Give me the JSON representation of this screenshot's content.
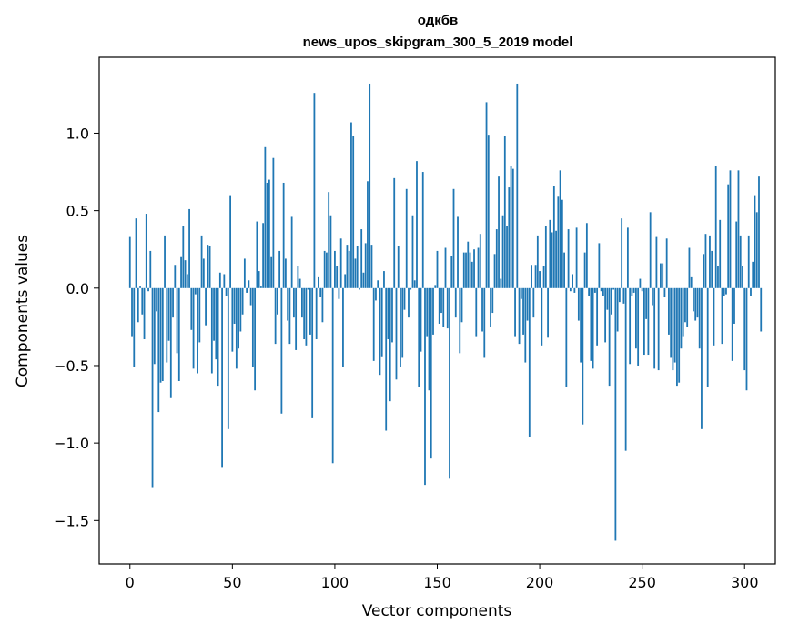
{
  "chart_data": {
    "type": "bar",
    "title_line1": "одкбв",
    "title_line2": "news_upos_skipgram_300_5_2019 model",
    "xlabel": "Vector components",
    "ylabel": "Components values",
    "xlim": [
      -15,
      315
    ],
    "ylim": [
      -1.78,
      1.49
    ],
    "x_ticks": [
      0,
      50,
      100,
      150,
      200,
      250,
      300
    ],
    "y_ticks": [
      1.0,
      0.5,
      0.0,
      -0.5,
      -1.0,
      -1.5
    ],
    "y_tick_labels": [
      "1.0",
      "0.5",
      "0.0",
      "−0.5",
      "−1.0",
      "−1.5"
    ],
    "color": "#1f77b4",
    "values": [
      0.33,
      -0.31,
      -0.51,
      0.45,
      -0.22,
      0.01,
      -0.17,
      -0.33,
      0.48,
      -0.02,
      0.24,
      -1.29,
      -0.49,
      -0.15,
      -0.8,
      -0.61,
      -0.6,
      0.34,
      -0.48,
      -0.34,
      -0.71,
      -0.19,
      0.15,
      -0.42,
      -0.6,
      0.2,
      0.4,
      0.18,
      0.09,
      0.51,
      -0.27,
      -0.52,
      -0.04,
      -0.55,
      -0.35,
      0.34,
      0.19,
      -0.24,
      0.28,
      0.27,
      -0.55,
      -0.34,
      -0.46,
      -0.63,
      0.1,
      -1.16,
      0.09,
      -0.05,
      -0.91,
      0.6,
      -0.41,
      -0.23,
      -0.52,
      -0.39,
      -0.28,
      -0.17,
      0.19,
      -0.03,
      0.05,
      -0.11,
      -0.51,
      -0.66,
      0.43,
      0.11,
      0.01,
      0.42,
      0.91,
      0.68,
      0.7,
      0.2,
      0.84,
      -0.36,
      -0.17,
      0.24,
      -0.81,
      0.68,
      0.19,
      -0.21,
      -0.36,
      0.46,
      -0.19,
      -0.4,
      0.14,
      0.06,
      -0.19,
      -0.33,
      -0.37,
      -0.01,
      -0.3,
      -0.84,
      1.26,
      -0.33,
      0.07,
      -0.06,
      -0.22,
      0.24,
      0.23,
      0.62,
      0.47,
      -1.13,
      0.24,
      0.14,
      -0.07,
      0.32,
      -0.51,
      0.09,
      0.28,
      0.24,
      1.07,
      0.98,
      0.19,
      0.27,
      -0.01,
      0.38,
      0.1,
      0.29,
      0.69,
      1.32,
      0.28,
      -0.47,
      -0.08,
      0.05,
      -0.56,
      -0.44,
      0.11,
      -0.92,
      -0.33,
      -0.73,
      -0.35,
      0.71,
      -0.59,
      0.27,
      -0.51,
      -0.45,
      -0.14,
      0.64,
      -0.19,
      -0.01,
      0.47,
      0.05,
      0.82,
      -0.64,
      -0.41,
      0.75,
      -1.27,
      -0.31,
      -0.66,
      -1.1,
      -0.3,
      0.02,
      0.24,
      -0.23,
      -0.16,
      -0.25,
      0.26,
      -0.26,
      -1.23,
      0.21,
      0.64,
      -0.19,
      0.46,
      -0.42,
      -0.22,
      0.23,
      0.23,
      0.3,
      0.23,
      0.17,
      0.25,
      -0.31,
      0.26,
      0.35,
      -0.28,
      -0.45,
      1.2,
      0.99,
      -0.25,
      -0.16,
      0.22,
      0.38,
      0.72,
      0.06,
      0.47,
      0.98,
      0.4,
      0.65,
      0.79,
      0.77,
      -0.31,
      1.32,
      -0.36,
      -0.07,
      -0.3,
      -0.48,
      -0.21,
      -0.96,
      0.15,
      -0.19,
      0.15,
      0.34,
      0.11,
      -0.37,
      0.14,
      0.4,
      -0.32,
      0.44,
      0.36,
      0.66,
      0.37,
      0.59,
      0.76,
      0.57,
      0.23,
      -0.64,
      0.38,
      -0.02,
      0.09,
      -0.03,
      0.39,
      -0.21,
      -0.48,
      -0.88,
      0.23,
      0.42,
      -0.05,
      -0.47,
      -0.52,
      -0.03,
      -0.37,
      0.29,
      -0.02,
      -0.05,
      -0.35,
      -0.14,
      -0.63,
      -0.17,
      -0.01,
      -1.63,
      -0.28,
      -0.09,
      0.45,
      -0.1,
      -1.05,
      0.39,
      -0.49,
      -0.05,
      -0.03,
      -0.39,
      -0.5,
      0.06,
      -0.02,
      -0.43,
      -0.2,
      -0.43,
      0.49,
      -0.11,
      -0.52,
      0.33,
      -0.53,
      0.16,
      0.16,
      -0.06,
      0.32,
      -0.3,
      -0.45,
      -0.53,
      -0.48,
      -0.63,
      -0.61,
      -0.39,
      -0.31,
      -0.22,
      -0.25,
      0.26,
      0.07,
      -0.15,
      -0.21,
      -0.19,
      -0.39,
      -0.91,
      0.22,
      0.35,
      -0.64,
      0.34,
      0.24,
      -0.37,
      0.79,
      0.14,
      0.44,
      -0.36,
      -0.05,
      -0.04,
      0.67,
      0.76,
      -0.47,
      -0.23,
      0.43,
      0.76,
      0.34,
      0.14,
      -0.53,
      -0.66,
      0.34,
      -0.05,
      0.17,
      0.6,
      0.49,
      0.72,
      -0.28
    ]
  }
}
